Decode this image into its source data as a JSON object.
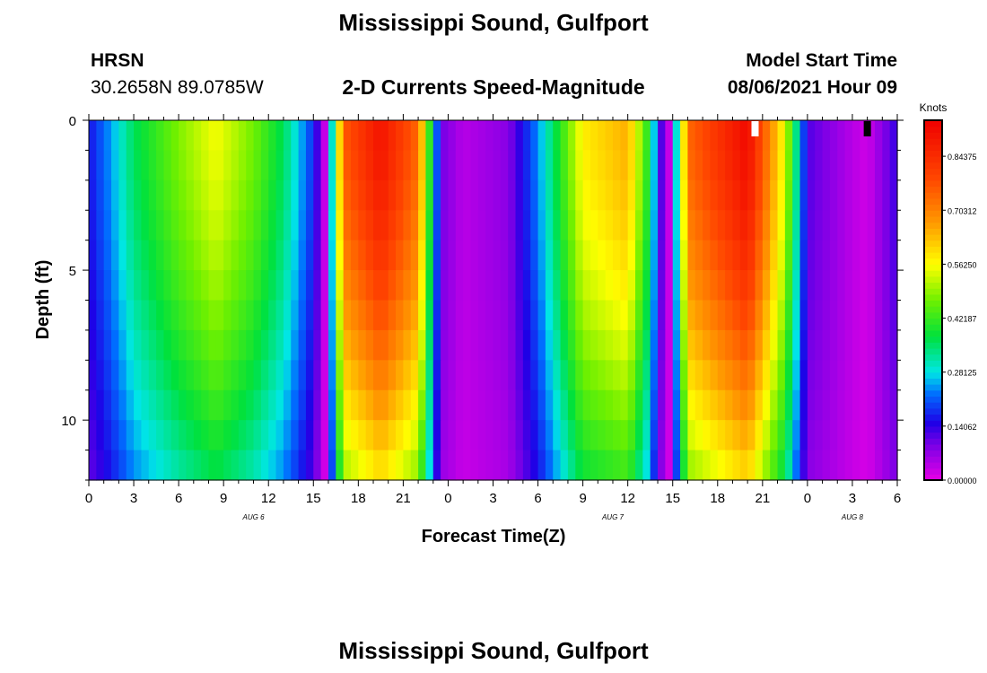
{
  "header": {
    "title": "Mississippi Sound, Gulfport",
    "station_id": "HRSN",
    "coordinates": "30.2658N  89.0785W",
    "subtitle": "2-D Currents Speed-Magnitude",
    "model_start_label": "Model Start Time",
    "model_start_value": "08/06/2021 Hour 09"
  },
  "footer": {
    "title": "Mississippi Sound, Gulfport"
  },
  "chart_data": {
    "type": "heatmap",
    "xlabel": "Forecast Time(Z)",
    "ylabel": "Depth (ft)",
    "x_tick_labels": [
      "0",
      "3",
      "6",
      "9",
      "12",
      "15",
      "18",
      "21",
      "0",
      "3",
      "6",
      "9",
      "12",
      "15",
      "18",
      "21",
      "0",
      "3",
      "6"
    ],
    "date_labels": [
      {
        "label": "AUG 6",
        "hour": 11
      },
      {
        "label": "AUG 7",
        "hour": 35
      },
      {
        "label": "AUG 8",
        "hour": 51
      }
    ],
    "x_range_hours": [
      0,
      54
    ],
    "time_step_hours": 0.5,
    "y_ticks": [
      0,
      5,
      10
    ],
    "y_range_ft": [
      0,
      12
    ],
    "depth_layers": 12,
    "colorbar": {
      "label": "Knots",
      "min": 0,
      "max": 0.9375,
      "tick_labels": [
        "0.00000",
        "0.14062",
        "0.28125",
        "0.42187",
        "0.56250",
        "0.70312",
        "0.84375"
      ]
    },
    "speed_profile_knots": [
      {
        "h": 0,
        "v": 0.16
      },
      {
        "h": 1.5,
        "v": 0.25
      },
      {
        "h": 3,
        "v": 0.36
      },
      {
        "h": 6,
        "v": 0.48
      },
      {
        "h": 8.5,
        "v": 0.56
      },
      {
        "h": 11,
        "v": 0.47
      },
      {
        "h": 13,
        "v": 0.36
      },
      {
        "h": 15,
        "v": 0.18
      },
      {
        "h": 15.8,
        "v": 0.02
      },
      {
        "h": 17,
        "v": 0.76
      },
      {
        "h": 19.5,
        "v": 0.9
      },
      {
        "h": 22,
        "v": 0.74
      },
      {
        "h": 23.5,
        "v": 0.1
      },
      {
        "h": 25,
        "v": 0.04
      },
      {
        "h": 28,
        "v": 0.08
      },
      {
        "h": 30,
        "v": 0.24
      },
      {
        "h": 33,
        "v": 0.58
      },
      {
        "h": 36,
        "v": 0.65
      },
      {
        "h": 37.5,
        "v": 0.38
      },
      {
        "h": 38,
        "v": 0.16
      },
      {
        "h": 38.8,
        "v": 0.02
      },
      {
        "h": 40,
        "v": 0.74
      },
      {
        "h": 44,
        "v": 0.92
      },
      {
        "h": 46.5,
        "v": 0.55
      },
      {
        "h": 48,
        "v": 0.12
      },
      {
        "h": 51,
        "v": 0.04
      },
      {
        "h": 52,
        "v": 0.02
      },
      {
        "h": 54,
        "v": 0.14
      }
    ],
    "depth_attenuation": 0.35,
    "markers": [
      {
        "hour": 44.5,
        "color": "#ffffff"
      },
      {
        "hour": 52,
        "color": "#000000"
      }
    ]
  }
}
